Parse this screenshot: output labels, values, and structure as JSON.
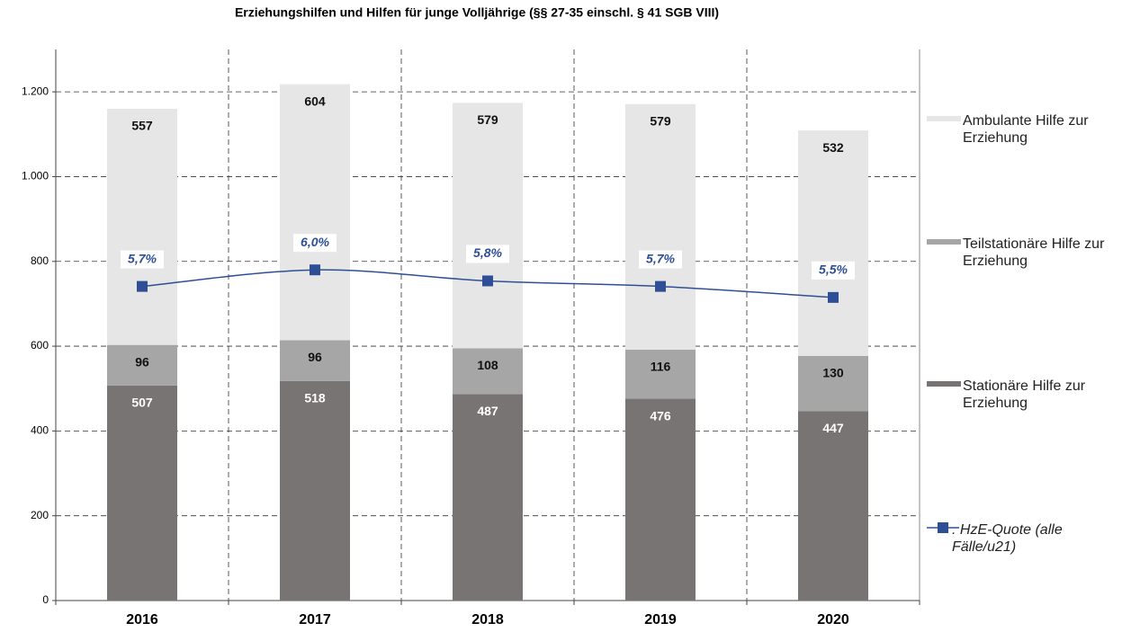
{
  "chart_data": {
    "type": "bar",
    "stacked": true,
    "title": "Erziehungshilfen und Hilfen für junge Volljährige (§§ 27-35 einschl. § 41 SGB VIII)",
    "categories": [
      "2016",
      "2017",
      "2018",
      "2019",
      "2020"
    ],
    "series": [
      {
        "name": "Stationäre Hilfe zur Erziehung",
        "color": "#787473",
        "values": [
          507,
          518,
          487,
          476,
          447
        ]
      },
      {
        "name": "Teilstationäre Hilfe zur Erziehung",
        "color": "#a6a6a6",
        "values": [
          96,
          96,
          108,
          116,
          130
        ]
      },
      {
        "name": "Ambulante Hilfe zur Erziehung",
        "color": "#e6e6e6",
        "values": [
          557,
          604,
          579,
          579,
          532
        ]
      },
      {
        "name": ". HzE-Quote (alle Fälle/u21)",
        "color": "#2e4f96",
        "type": "line",
        "axis": "y2",
        "values": [
          5.7,
          6.0,
          5.8,
          5.7,
          5.5
        ],
        "value_labels": [
          "5,7%",
          "6,0%",
          "5,8%",
          "5,7%",
          "5,5%"
        ]
      }
    ],
    "ylim": [
      0,
      1300
    ],
    "yticks": [
      0,
      200,
      400,
      600,
      800,
      {
        "value": 1000,
        "label": "1.000"
      },
      {
        "value": 1200,
        "label": "1.200"
      }
    ],
    "y2lim": [
      0,
      10
    ],
    "grid": true,
    "legend": "right"
  }
}
